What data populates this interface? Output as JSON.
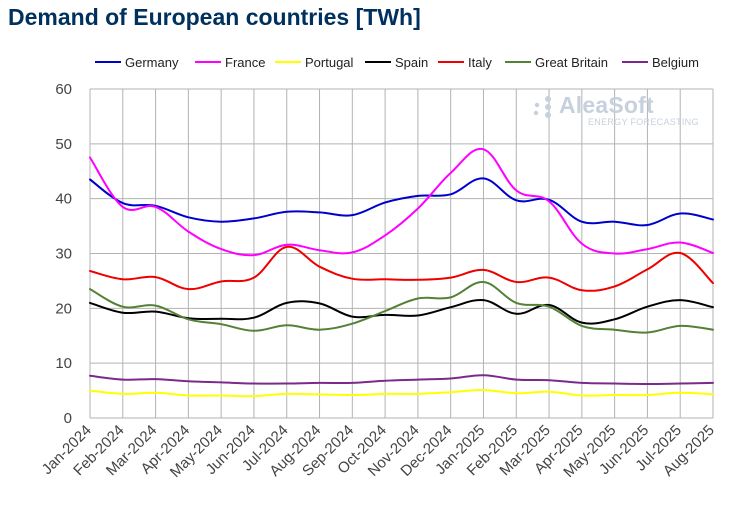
{
  "chart_data": {
    "type": "line",
    "title": "Demand of European countries [TWh]",
    "xlabel": "",
    "ylabel": "",
    "ylim": [
      0,
      60
    ],
    "yticks": [
      0,
      10,
      20,
      30,
      40,
      50,
      60
    ],
    "grid": true,
    "legend_position": "top",
    "categories": [
      "Jan-2024",
      "Feb-2024",
      "Mar-2024",
      "Apr-2024",
      "May-2024",
      "Jun-2024",
      "Jul-2024",
      "Aug-2024",
      "Sep-2024",
      "Oct-2024",
      "Nov-2024",
      "Dec-2024",
      "Jan-2025",
      "Feb-2025",
      "Mar-2025",
      "Apr-2025",
      "May-2025",
      "Jun-2025",
      "Jul-2025",
      "Aug-2025"
    ],
    "series": [
      {
        "name": "Germany",
        "color": "#0000cc",
        "values": [
          43.5,
          39.2,
          38.7,
          36.6,
          35.8,
          36.4,
          37.6,
          37.5,
          37.0,
          39.3,
          40.5,
          40.8,
          43.7,
          39.7,
          39.8,
          35.8,
          35.8,
          35.2,
          37.3,
          36.2
        ]
      },
      {
        "name": "France",
        "color": "#ff00ff",
        "values": [
          47.5,
          38.5,
          38.5,
          34.0,
          30.8,
          29.7,
          31.6,
          30.6,
          30.2,
          33.3,
          38.2,
          44.7,
          49.0,
          41.5,
          39.5,
          31.8,
          30.0,
          30.8,
          32.0,
          30.1
        ]
      },
      {
        "name": "Portugal",
        "color": "#ffff00",
        "values": [
          5.0,
          4.4,
          4.6,
          4.1,
          4.1,
          4.0,
          4.4,
          4.3,
          4.2,
          4.4,
          4.4,
          4.7,
          5.1,
          4.5,
          4.8,
          4.1,
          4.2,
          4.2,
          4.6,
          4.3
        ]
      },
      {
        "name": "Spain",
        "color": "#000000",
        "values": [
          21.0,
          19.2,
          19.4,
          18.2,
          18.1,
          18.3,
          21.0,
          20.9,
          18.5,
          18.8,
          18.7,
          20.2,
          21.5,
          19.0,
          20.6,
          17.4,
          18.0,
          20.3,
          21.5,
          20.2
        ]
      },
      {
        "name": "Italy",
        "color": "#ee0000",
        "values": [
          26.8,
          25.3,
          25.7,
          23.5,
          24.9,
          25.6,
          31.2,
          27.6,
          25.4,
          25.3,
          25.2,
          25.6,
          27.0,
          24.8,
          25.6,
          23.3,
          24.0,
          27.1,
          30.1,
          24.6
        ]
      },
      {
        "name": "Great Britain",
        "color": "#538135",
        "values": [
          23.5,
          20.3,
          20.5,
          18.0,
          17.1,
          15.9,
          16.9,
          16.1,
          17.2,
          19.5,
          21.8,
          22.0,
          24.8,
          21.0,
          20.3,
          16.8,
          16.1,
          15.6,
          16.8,
          16.1
        ]
      },
      {
        "name": "Belgium",
        "color": "#7b2a8b",
        "values": [
          7.7,
          7.0,
          7.1,
          6.7,
          6.5,
          6.3,
          6.3,
          6.4,
          6.4,
          6.8,
          7.0,
          7.2,
          7.8,
          7.0,
          6.9,
          6.4,
          6.3,
          6.2,
          6.3,
          6.4
        ]
      }
    ]
  },
  "logo": {
    "name": "AleaSoft",
    "subtitle": "ENERGY FORECASTING"
  }
}
